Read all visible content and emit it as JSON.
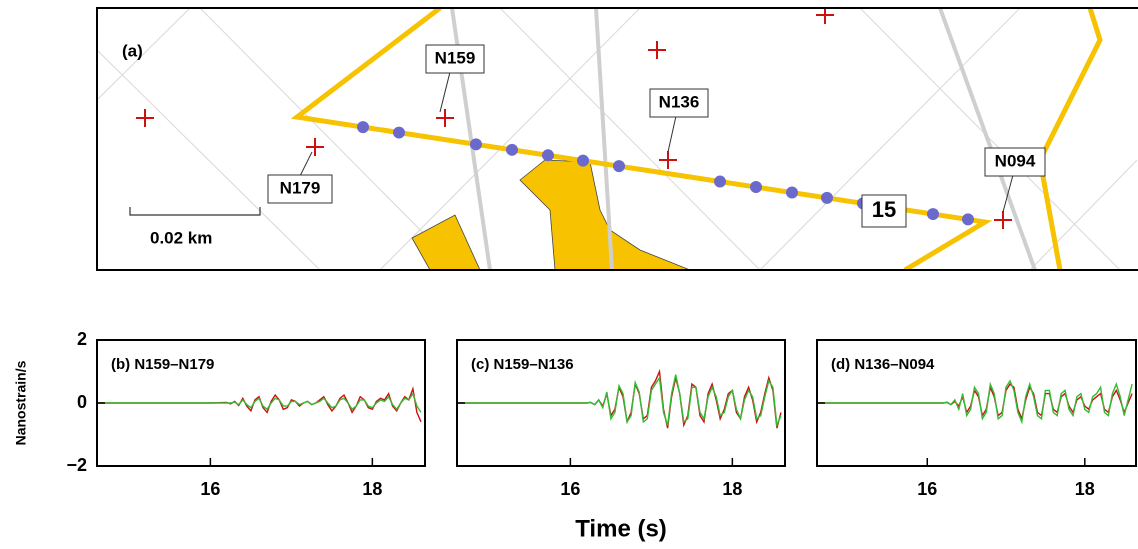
{
  "map": {
    "panel_label": "(a)",
    "stations": [
      {
        "label": "N159"
      },
      {
        "label": "N136"
      },
      {
        "label": "N179"
      },
      {
        "label": "N094"
      }
    ],
    "line_label": "15",
    "scale_label": "0.02 km"
  },
  "chart_data": [
    {
      "type": "line",
      "title": "(b) N159–N179",
      "ylabel": "Nanostrain/s",
      "xlim": [
        14.6,
        18.65
      ],
      "ylim": [
        -2,
        2
      ],
      "xticks": [
        16,
        18
      ],
      "yticks": [
        2,
        0,
        {
          "value": -2,
          "label": "−2"
        }
      ],
      "x": [
        14.6,
        15,
        15.5,
        16,
        16.2,
        16.25,
        16.3,
        16.35,
        16.4,
        16.45,
        16.5,
        16.55,
        16.6,
        16.65,
        16.7,
        16.75,
        16.8,
        16.85,
        16.9,
        16.95,
        17,
        17.05,
        17.1,
        17.15,
        17.2,
        17.25,
        17.3,
        17.35,
        17.4,
        17.45,
        17.5,
        17.55,
        17.6,
        17.65,
        17.7,
        17.75,
        17.8,
        17.85,
        17.9,
        17.95,
        18,
        18.05,
        18.1,
        18.15,
        18.2,
        18.25,
        18.3,
        18.35,
        18.4,
        18.45,
        18.5,
        18.55,
        18.6
      ],
      "series": [
        {
          "color": "#cc1111",
          "values": [
            0,
            0,
            0,
            0,
            0.02,
            -0.03,
            0.05,
            -0.08,
            0.15,
            -0.1,
            -0.25,
            0.1,
            0.2,
            -0.15,
            -0.3,
            0.05,
            0.25,
            0.1,
            -0.2,
            -0.15,
            0.1,
            0.05,
            -0.1,
            0,
            0.05,
            -0.05,
            0,
            0.1,
            0.2,
            -0.05,
            -0.25,
            -0.1,
            0.15,
            0.25,
            0,
            -0.3,
            -0.1,
            0.2,
            0.1,
            -0.15,
            -0.2,
            0.05,
            0.15,
            0.1,
            0.3,
            -0.1,
            -0.25,
            0,
            0.2,
            0.1,
            0.45,
            -0.3,
            -0.6
          ]
        },
        {
          "color": "#33bb33",
          "values": [
            0,
            0,
            0,
            0,
            0,
            0,
            0.03,
            -0.05,
            0.1,
            -0.05,
            -0.15,
            0.05,
            0.15,
            -0.1,
            -0.2,
            0,
            0.15,
            0.1,
            -0.1,
            -0.1,
            0.05,
            0.05,
            -0.05,
            0,
            0.05,
            -0.05,
            0,
            0.05,
            0.15,
            0,
            -0.15,
            -0.1,
            0.1,
            0.15,
            0,
            -0.2,
            -0.1,
            0.1,
            0.1,
            -0.1,
            -0.15,
            0,
            0.1,
            0.05,
            0.2,
            -0.05,
            -0.2,
            0,
            0.15,
            0.1,
            0.3,
            -0.1,
            -0.3
          ]
        }
      ]
    },
    {
      "type": "line",
      "title": "(c) N159–N136",
      "xlabel": "Time (s)",
      "xlim": [
        14.6,
        18.65
      ],
      "ylim": [
        -2,
        2
      ],
      "xticks": [
        16,
        18
      ],
      "x": [
        14.6,
        15,
        15.5,
        16,
        16.2,
        16.25,
        16.3,
        16.35,
        16.4,
        16.45,
        16.5,
        16.55,
        16.6,
        16.65,
        16.7,
        16.75,
        16.8,
        16.85,
        16.9,
        16.95,
        17,
        17.05,
        17.1,
        17.15,
        17.2,
        17.25,
        17.3,
        17.35,
        17.4,
        17.45,
        17.5,
        17.55,
        17.6,
        17.65,
        17.7,
        17.75,
        17.8,
        17.85,
        17.9,
        17.95,
        18,
        18.05,
        18.1,
        18.15,
        18.2,
        18.25,
        18.3,
        18.35,
        18.4,
        18.45,
        18.5,
        18.55,
        18.6
      ],
      "series": [
        {
          "color": "#cc1111",
          "values": [
            0,
            0,
            0,
            0,
            0,
            0.02,
            -0.05,
            0.1,
            -0.1,
            0.3,
            -0.4,
            -0.2,
            0.5,
            0.2,
            -0.6,
            -0.3,
            0.6,
            0.3,
            -0.5,
            -0.4,
            0.5,
            0.7,
            1.0,
            -0.2,
            -0.8,
            0.2,
            0.8,
            0.3,
            -0.7,
            -0.4,
            0.6,
            0.5,
            -0.4,
            -0.6,
            0.3,
            0.6,
            0.1,
            -0.5,
            -0.2,
            0.3,
            0.4,
            -0.3,
            -0.5,
            0.2,
            0.5,
            0.1,
            -0.6,
            -0.3,
            0.3,
            0.8,
            0.4,
            -0.8,
            -0.3
          ]
        },
        {
          "color": "#33bb33",
          "values": [
            0,
            0,
            0,
            0,
            0,
            0.02,
            -0.05,
            0.1,
            -0.15,
            0.35,
            -0.5,
            -0.3,
            0.55,
            0.3,
            -0.6,
            -0.4,
            0.65,
            0.35,
            -0.6,
            -0.5,
            0.4,
            0.6,
            0.8,
            -0.3,
            -0.7,
            0.3,
            0.9,
            0.3,
            -0.6,
            -0.5,
            0.5,
            0.5,
            -0.3,
            -0.5,
            0.2,
            0.5,
            0.2,
            -0.4,
            -0.3,
            0.2,
            0.4,
            -0.2,
            -0.5,
            0.1,
            0.4,
            0.2,
            -0.5,
            -0.4,
            0.2,
            0.7,
            0.5,
            -0.7,
            -0.4
          ]
        }
      ]
    },
    {
      "type": "line",
      "title": "(d) N136–N094",
      "xlim": [
        14.6,
        18.65
      ],
      "ylim": [
        -2,
        2
      ],
      "xticks": [
        16,
        18
      ],
      "x": [
        14.6,
        15,
        15.5,
        16,
        16.2,
        16.25,
        16.3,
        16.35,
        16.4,
        16.45,
        16.5,
        16.55,
        16.6,
        16.65,
        16.7,
        16.75,
        16.8,
        16.85,
        16.9,
        16.95,
        17,
        17.05,
        17.1,
        17.15,
        17.2,
        17.25,
        17.3,
        17.35,
        17.4,
        17.45,
        17.5,
        17.55,
        17.6,
        17.65,
        17.7,
        17.75,
        17.8,
        17.85,
        17.9,
        17.95,
        18,
        18.05,
        18.1,
        18.15,
        18.2,
        18.25,
        18.3,
        18.35,
        18.4,
        18.45,
        18.5,
        18.55,
        18.6
      ],
      "series": [
        {
          "color": "#cc1111",
          "values": [
            0,
            0,
            0,
            0,
            0,
            0.02,
            -0.05,
            0.05,
            -0.1,
            0.2,
            -0.3,
            -0.1,
            0.4,
            0.2,
            -0.4,
            -0.2,
            0.5,
            0.2,
            -0.4,
            -0.3,
            0.4,
            0.6,
            0.5,
            -0.2,
            -0.5,
            0.1,
            0.5,
            0.3,
            -0.3,
            -0.4,
            0.3,
            0.3,
            -0.2,
            -0.3,
            0.2,
            0.3,
            -0.1,
            -0.3,
            0.1,
            0.2,
            -0.1,
            -0.2,
            0.1,
            0.2,
            0.3,
            -0.2,
            -0.3,
            0.2,
            0.4,
            0.1,
            -0.3,
            0,
            0.3
          ]
        },
        {
          "color": "#33bb33",
          "values": [
            0,
            0,
            0,
            0,
            0,
            0.03,
            -0.05,
            0.1,
            -0.2,
            0.3,
            -0.4,
            -0.2,
            0.5,
            0.3,
            -0.5,
            -0.3,
            0.6,
            0.3,
            -0.5,
            -0.4,
            0.5,
            0.7,
            0.4,
            -0.3,
            -0.6,
            0.2,
            0.6,
            0.2,
            -0.4,
            -0.5,
            0.4,
            0.4,
            -0.3,
            -0.4,
            0.3,
            0.4,
            -0.2,
            -0.4,
            0.2,
            0.3,
            -0.2,
            -0.3,
            0.2,
            0.3,
            0.5,
            -0.3,
            -0.4,
            0.3,
            0.6,
            0.2,
            -0.4,
            0.1,
            0.6
          ]
        }
      ]
    }
  ]
}
